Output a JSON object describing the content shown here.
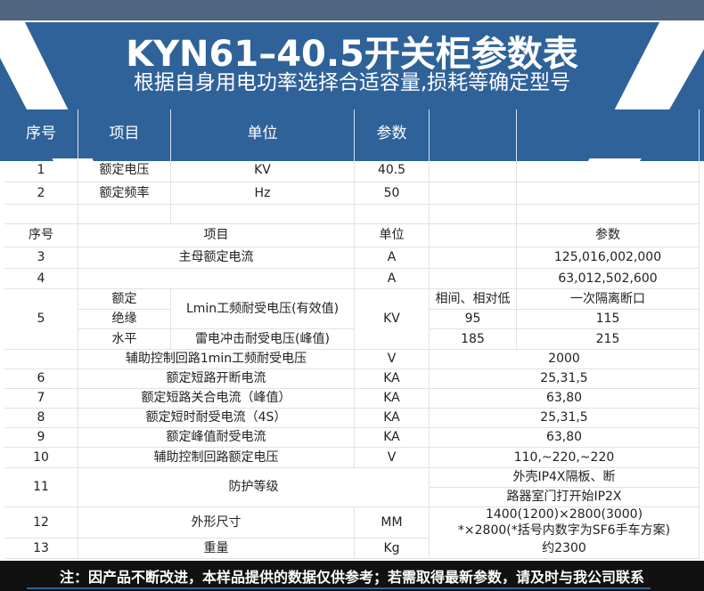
{
  "banner": {
    "title": "KYN61–40.5开关柜参数表",
    "subtitle": "根据自身用电功率选择合适容量,损耗等确定型号",
    "color": "#2f6299"
  },
  "header": {
    "seq": "序号",
    "item": "项目",
    "unit": "单位",
    "param": "参数"
  },
  "rows": {
    "r1": {
      "seq": "1",
      "item": "额定电压",
      "unit": "KV",
      "value": "40.5"
    },
    "r2": {
      "seq": "2",
      "item": "额定频率",
      "unit": "Hz",
      "value": "50"
    },
    "sub": {
      "seq": "序号",
      "item": "项目",
      "unit": "单位",
      "param": "参数"
    },
    "r3": {
      "seq": "3",
      "item": "主母额定电流",
      "unit": "A",
      "value": "125,016,002,000"
    },
    "r4": {
      "seq": "4",
      "item": "",
      "unit": "A",
      "value": "63,012,502,600"
    },
    "r5": {
      "seq": "5",
      "g1": "额定",
      "g2": "绝缘",
      "g3": "水平",
      "item_a": "Lmin工频耐受电压(有效值)",
      "item_b": "雷电冲击耐受电压(峰值)",
      "unit": "KV",
      "h1": "相间、相对低",
      "h2": "一次隔离断口",
      "a1": "95",
      "a2": "115",
      "b1": "185",
      "b2": "215"
    },
    "aux": {
      "item": "辅助控制回路1min工频耐受电压",
      "unit": "V",
      "value": "2000"
    },
    "r6": {
      "seq": "6",
      "item": "额定短路开断电流",
      "unit": "KA",
      "value": "25,31,5"
    },
    "r7": {
      "seq": "7",
      "item": "额定短路关合电流（峰值）",
      "unit": "KA",
      "value": "63,80"
    },
    "r8": {
      "seq": "8",
      "item": "额定短时耐受电流（4S）",
      "unit": "KA",
      "value": "25,31,5"
    },
    "r9": {
      "seq": "9",
      "item": "额定峰值耐受电流",
      "unit": "KA",
      "value": "63,80"
    },
    "r10": {
      "seq": "10",
      "item": "辅助控制回路额定电压",
      "unit": "V",
      "value": "110,~220,~220"
    },
    "r11": {
      "seq": "11",
      "item": "防护等级",
      "value1": "外壳IP4X隔板、断",
      "value2": "路器室门打开始IP2X"
    },
    "r12": {
      "seq": "12",
      "item": "外形尺寸",
      "unit": "MM",
      "value1": "1400(1200)×2800(3000)",
      "value2": "*×2800(*括号内数字为SF6手车方案)"
    },
    "r13": {
      "seq": "13",
      "item": "重量",
      "unit": "Kg",
      "value": "约2300"
    }
  },
  "footer": {
    "note": "注：因产品不断改进，本样品提供的数据仅供参考；若需取得最新参数，请及时与我公司联系"
  }
}
